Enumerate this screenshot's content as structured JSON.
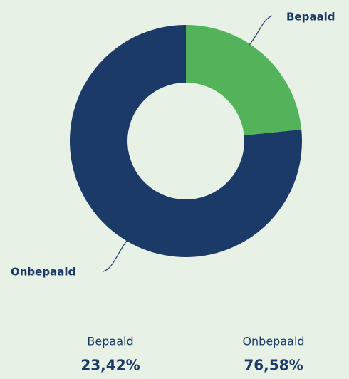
{
  "chart_data": {
    "type": "donut",
    "categories": [
      "Bepaald",
      "Onbepaald"
    ],
    "values": [
      23.42,
      76.58
    ],
    "value_labels": [
      "23,42%",
      "76,58%"
    ],
    "colors": [
      "#52b35a",
      "#1b3a68"
    ]
  }
}
